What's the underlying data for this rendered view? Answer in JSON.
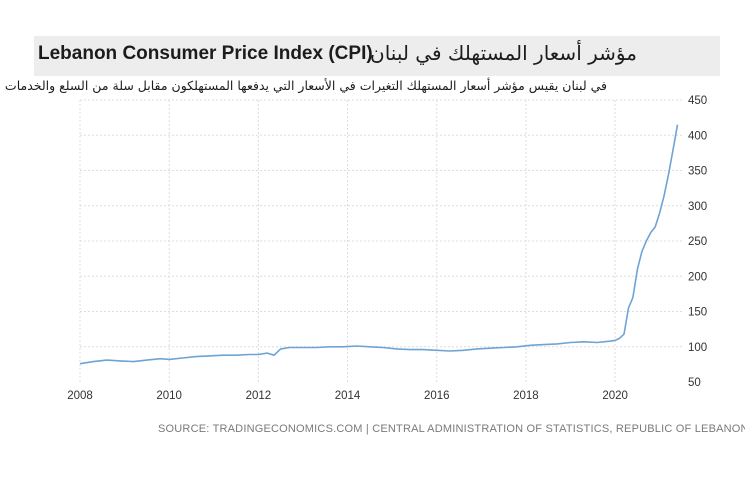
{
  "header": {
    "title_en": "Lebanon Consumer Price Index (CPI)",
    "title_ar": "مؤشر أسعار المستهلك في لبنان",
    "subtitle_ar": "في لبنان يقيس مؤشر أسعار المستهلك التغيرات في الأسعار التي يدفعها المستهلكون مقابل سلة من السلع والخدمات"
  },
  "source": "SOURCE: TRADINGECONOMICS.COM | CENTRAL ADMINISTRATION OF STATISTICS, REPUBLIC OF LEBANON",
  "colors": {
    "line": "#6fa3d4",
    "grid": "#dcdcdc",
    "band": "#ededed"
  },
  "chart_data": {
    "type": "line",
    "title": "Lebanon Consumer Price Index (CPI)",
    "xlabel": "",
    "ylabel": "",
    "xlim": [
      2008.0,
      2021.5
    ],
    "ylim": [
      50,
      450
    ],
    "x_ticks": [
      2008,
      2010,
      2012,
      2014,
      2016,
      2018,
      2020
    ],
    "y_ticks": [
      50,
      100,
      150,
      200,
      250,
      300,
      350,
      400,
      450
    ],
    "grid": true,
    "legend": "none",
    "series": [
      {
        "x": [
          2008.0,
          2008.3,
          2008.6,
          2008.9,
          2009.2,
          2009.5,
          2009.8,
          2010.0,
          2010.3,
          2010.6,
          2010.9,
          2011.2,
          2011.5,
          2011.8,
          2012.0,
          2012.2,
          2012.35,
          2012.5,
          2012.7,
          2013.0,
          2013.3,
          2013.6,
          2013.9,
          2014.2,
          2014.5,
          2014.8,
          2015.1,
          2015.4,
          2015.7,
          2016.0,
          2016.3,
          2016.6,
          2016.9,
          2017.2,
          2017.5,
          2017.8,
          2018.1,
          2018.4,
          2018.7,
          2019.0,
          2019.3,
          2019.6,
          2019.9,
          2020.0,
          2020.1,
          2020.2,
          2020.3,
          2020.4,
          2020.5,
          2020.6,
          2020.7,
          2020.8,
          2020.9,
          2021.0,
          2021.1,
          2021.2,
          2021.3,
          2021.4
        ],
        "y": [
          76,
          79,
          81,
          80,
          79,
          81,
          83,
          82,
          84,
          86,
          87,
          88,
          88,
          89,
          89,
          91,
          88,
          97,
          99,
          99,
          99,
          100,
          100,
          101,
          100,
          99,
          97,
          96,
          96,
          95,
          94,
          95,
          97,
          98,
          99,
          100,
          102,
          103,
          104,
          106,
          107,
          106,
          108,
          109,
          112,
          118,
          155,
          170,
          210,
          235,
          250,
          262,
          270,
          290,
          315,
          345,
          380,
          415
        ]
      }
    ]
  }
}
